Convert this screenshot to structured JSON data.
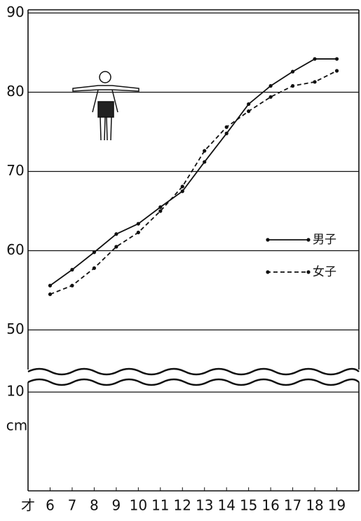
{
  "chart_data": {
    "type": "line",
    "xlabel": "才",
    "x": [
      6,
      7,
      8,
      9,
      10,
      11,
      12,
      13,
      14,
      15,
      16,
      17,
      18,
      19
    ],
    "xlim": [
      5,
      20
    ],
    "xticks": [
      6,
      7,
      8,
      9,
      10,
      11,
      12,
      13,
      14,
      15,
      16,
      17,
      18,
      19
    ],
    "ylim": [
      45,
      90.4
    ],
    "yticks": [
      50,
      60,
      70,
      80,
      90
    ],
    "lower_axis": {
      "ylim": [
        0,
        11
      ],
      "yticks": [
        10
      ],
      "unit": "cm"
    },
    "grid": true,
    "legend": "right",
    "series": [
      {
        "name": "男子",
        "color": "#111111",
        "line_style": "solid",
        "values": [
          55.6,
          57.6,
          59.8,
          62.1,
          63.4,
          65.5,
          67.5,
          71.2,
          74.8,
          78.5,
          80.8,
          82.6,
          84.2,
          84.2
        ]
      },
      {
        "name": "女子",
        "color": "#111111",
        "line_style": "dashed",
        "values": [
          54.5,
          55.6,
          57.8,
          60.5,
          62.3,
          65.0,
          68.1,
          72.6,
          75.6,
          77.6,
          79.4,
          80.8,
          81.3,
          82.7
        ]
      }
    ]
  }
}
